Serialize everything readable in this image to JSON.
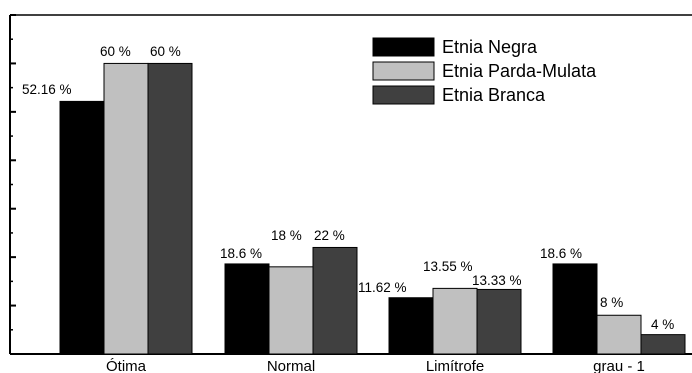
{
  "chart_data": {
    "type": "bar",
    "categories": [
      "Ótima",
      "Normal",
      "Limítrofe",
      "grau - 1"
    ],
    "series": [
      {
        "name": "Etnia Negra",
        "values": [
          52.16,
          18.6,
          11.62,
          18.6
        ],
        "color": "#000000",
        "labels": [
          "52.16 %",
          "18.6 %",
          "11.62 %",
          "18.6 %"
        ]
      },
      {
        "name": "Etnia Parda-Mulata",
        "values": [
          60,
          18,
          13.55,
          8
        ],
        "color": "#c0c0c0",
        "labels": [
          "60 %",
          "18 %",
          "13.55 %",
          "8 %"
        ]
      },
      {
        "name": "Etnia Branca",
        "values": [
          60,
          22,
          13.33,
          4
        ],
        "color": "#404040",
        "labels": [
          "60 %",
          "22 %",
          "13.33 %",
          "4 %"
        ]
      }
    ],
    "ylim": [
      0,
      70
    ],
    "y_ticks": [
      10,
      20,
      30,
      40,
      50,
      60,
      70
    ],
    "y_tick_labels_visible": false,
    "legend_position": "top-right",
    "grid": false
  }
}
